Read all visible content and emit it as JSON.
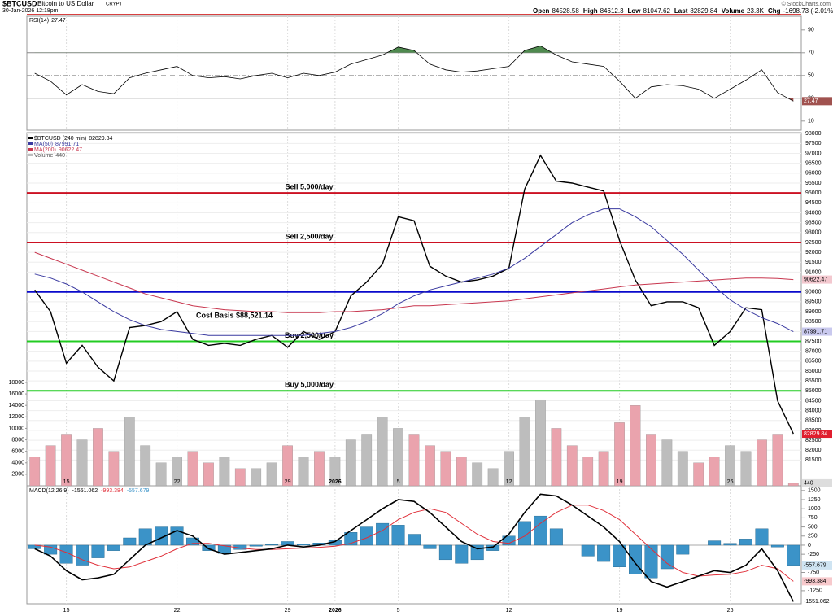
{
  "header": {
    "symbol": "$BTCUSD",
    "name": "Bitcoin to US Dollar",
    "exchange": "CRYPT",
    "date": "30-Jan-2026 12:18pm",
    "quote": [
      {
        "label": "Open",
        "value": 84528.58
      },
      {
        "label": "High",
        "value": 84612.3
      },
      {
        "label": "Low",
        "value": 81047.62
      },
      {
        "label": "Last",
        "value": 82829.84
      },
      {
        "label": "Volume",
        "value": "23.3K"
      },
      {
        "label": "Chg",
        "value": "-1698.73 (-2.01%)"
      }
    ],
    "credit": "© StockCharts.com"
  },
  "chart_data": [
    {
      "type": "line",
      "title": "RSI(14)",
      "ylim": [
        2,
        102
      ],
      "yticks": [
        10,
        30,
        50,
        70,
        90
      ],
      "overbought": 70,
      "oversold": 30,
      "midline": 50,
      "colors": {
        "line": "#000000",
        "overbought": "#4f8a4f",
        "oversold": "#a0524f"
      },
      "series": [
        {
          "name": "RSI(14)",
          "color": "#000000",
          "values": [
            52,
            45,
            33,
            42,
            36,
            34,
            48,
            52,
            55,
            58,
            50,
            48,
            49,
            47,
            50,
            52,
            48,
            52,
            50,
            53,
            60,
            64,
            68,
            75,
            72,
            60,
            55,
            53,
            54,
            56,
            58,
            72,
            76,
            68,
            62,
            60,
            58,
            45,
            30,
            40,
            42,
            41,
            38,
            30,
            38,
            46,
            55,
            35,
            27.47
          ]
        }
      ]
    },
    {
      "type": "line",
      "title": "$BTCUSD (240 min)",
      "grid": true,
      "categories": [
        null,
        null,
        "15",
        null,
        null,
        null,
        null,
        null,
        null,
        "22",
        null,
        null,
        null,
        null,
        null,
        null,
        "29",
        null,
        null,
        "2026",
        null,
        null,
        null,
        "5",
        null,
        null,
        null,
        null,
        null,
        null,
        "12",
        null,
        null,
        null,
        null,
        null,
        null,
        "19",
        null,
        null,
        null,
        null,
        null,
        null,
        "26",
        null,
        null,
        null,
        null
      ],
      "ylim": [
        80200,
        98050
      ],
      "yticks": [
        81500,
        82000,
        82500,
        83000,
        83500,
        84000,
        84500,
        85000,
        85500,
        86000,
        86500,
        87000,
        87500,
        88000,
        88500,
        89000,
        89500,
        90000,
        90500,
        91000,
        91500,
        92000,
        92500,
        93000,
        93500,
        94000,
        94500,
        95000,
        95500,
        96000,
        96500,
        97000,
        97500,
        98000
      ],
      "series": [
        {
          "name": "$BTCUSD (240 min)",
          "color": "#000000",
          "values": [
            90100,
            89000,
            86400,
            87300,
            86200,
            85500,
            88200,
            88300,
            88500,
            89000,
            87600,
            87300,
            87400,
            87300,
            87600,
            87800,
            87200,
            88000,
            87600,
            88000,
            89800,
            90500,
            91400,
            93800,
            93600,
            91300,
            90800,
            90500,
            90600,
            90800,
            91200,
            95200,
            96900,
            95600,
            95500,
            95300,
            95100,
            92600,
            90600,
            89300,
            89500,
            89500,
            89200,
            87300,
            88000,
            89200,
            89100,
            84500,
            82829.84
          ]
        },
        {
          "name": "MA(50)",
          "color": "#3a3aa0",
          "values": [
            90900,
            90700,
            90400,
            90000,
            89500,
            89000,
            88600,
            88300,
            88100,
            88000,
            87900,
            87800,
            87800,
            87800,
            87800,
            87800,
            87800,
            87800,
            87900,
            88000,
            88200,
            88500,
            88900,
            89400,
            89800,
            90100,
            90300,
            90500,
            90700,
            90900,
            91200,
            91700,
            92300,
            92900,
            93500,
            93900,
            94200,
            94200,
            93800,
            93300,
            92600,
            91900,
            91100,
            90300,
            89600,
            89100,
            88700,
            88400,
            87991.71
          ]
        },
        {
          "name": "MA(200)",
          "color": "#c8374f",
          "values": [
            92000,
            91700,
            91400,
            91100,
            90800,
            90500,
            90200,
            89900,
            89700,
            89500,
            89300,
            89200,
            89100,
            89050,
            89000,
            89000,
            88950,
            88950,
            88950,
            89000,
            89000,
            89050,
            89100,
            89200,
            89300,
            89300,
            89350,
            89400,
            89450,
            89500,
            89550,
            89650,
            89750,
            89850,
            89950,
            90050,
            90150,
            90250,
            90350,
            90400,
            90450,
            90500,
            90550,
            90600,
            90650,
            90700,
            90700,
            90680,
            90622.47
          ]
        }
      ],
      "volume": {
        "name": "Volume",
        "up_color": "#bdbdbd",
        "down_color": "#eaa3ad",
        "ylim": [
          0,
          61500
        ],
        "yticks": [
          2000,
          4000,
          6000,
          8000,
          10000,
          12000,
          14000,
          16000,
          18000
        ],
        "values": [
          5000,
          7000,
          9000,
          8000,
          10000,
          6000,
          12000,
          7000,
          4000,
          5000,
          6000,
          4000,
          5000,
          3000,
          3000,
          4000,
          7000,
          5000,
          6000,
          5000,
          8000,
          9000,
          12000,
          10000,
          9000,
          7000,
          6000,
          5000,
          4000,
          3000,
          6000,
          12000,
          15000,
          10000,
          7000,
          5000,
          6000,
          11000,
          14000,
          9000,
          8000,
          6000,
          4000,
          5000,
          7000,
          6000,
          8000,
          9000,
          440
        ]
      },
      "levels": [
        {
          "label": "Sell 5,000/day",
          "value": 95000,
          "color": "#cc1122"
        },
        {
          "label": "Sell 2,500/day",
          "value": 92500,
          "color": "#cc1122"
        },
        {
          "value": 90000,
          "color": "#0a0acc"
        },
        {
          "label": "Buy 2,500/day",
          "value": 87500,
          "color": "#22cc22"
        },
        {
          "label": "Buy 5,000/day",
          "value": 85000,
          "color": "#22cc22"
        }
      ],
      "annotation": "Cost Basis $88,521.14"
    },
    {
      "type": "macd",
      "title": "MACD(12,26,9)",
      "categories": [
        null,
        null,
        "15",
        null,
        null,
        null,
        null,
        null,
        null,
        "22",
        null,
        null,
        null,
        null,
        null,
        null,
        "29",
        null,
        null,
        "2026",
        null,
        null,
        null,
        "5",
        null,
        null,
        null,
        null,
        null,
        null,
        "12",
        null,
        null,
        null,
        null,
        null,
        null,
        "19",
        null,
        null,
        null,
        null,
        null,
        null,
        "26",
        null,
        null,
        null,
        null
      ],
      "ylim": [
        -1610,
        1630
      ],
      "yticks": [
        1500,
        1250,
        1000,
        750,
        500,
        250,
        0,
        -250,
        -750,
        -1250
      ],
      "series": [
        {
          "name": "MACD",
          "color": "#000000",
          "values": [
            -100,
            -300,
            -700,
            -950,
            -900,
            -800,
            -400,
            0,
            200,
            400,
            250,
            -100,
            -250,
            -200,
            -150,
            -100,
            0,
            -50,
            0,
            100,
            400,
            700,
            1000,
            1250,
            1200,
            900,
            500,
            100,
            -100,
            -50,
            300,
            900,
            1400,
            1350,
            1100,
            800,
            500,
            100,
            -500,
            -1000,
            -1150,
            -1000,
            -850,
            -700,
            -750,
            -550,
            -100,
            -700,
            -1551.062
          ]
        },
        {
          "name": "Signal",
          "color": "#e0303a",
          "values": [
            0,
            -50,
            -200,
            -400,
            -550,
            -650,
            -600,
            -450,
            -300,
            -100,
            50,
            50,
            -20,
            -80,
            -120,
            -120,
            -100,
            -80,
            -60,
            -30,
            50,
            200,
            400,
            700,
            900,
            1000,
            900,
            600,
            300,
            100,
            50,
            250,
            600,
            900,
            1100,
            1100,
            950,
            700,
            300,
            -100,
            -500,
            -750,
            -850,
            -820,
            -800,
            -720,
            -550,
            -650,
            -993.384
          ]
        },
        {
          "name": "Histogram",
          "color": "#3b93c8",
          "values": [
            -100,
            -250,
            -500,
            -550,
            -350,
            -150,
            200,
            450,
            500,
            500,
            200,
            -150,
            -230,
            -120,
            -30,
            20,
            100,
            30,
            60,
            130,
            350,
            500,
            600,
            550,
            300,
            -100,
            -400,
            -500,
            -400,
            -150,
            250,
            650,
            800,
            450,
            0,
            -300,
            -450,
            -600,
            -800,
            -900,
            -650,
            -250,
            0,
            120,
            50,
            170,
            450,
            -50,
            -557.679
          ]
        }
      ]
    }
  ]
}
